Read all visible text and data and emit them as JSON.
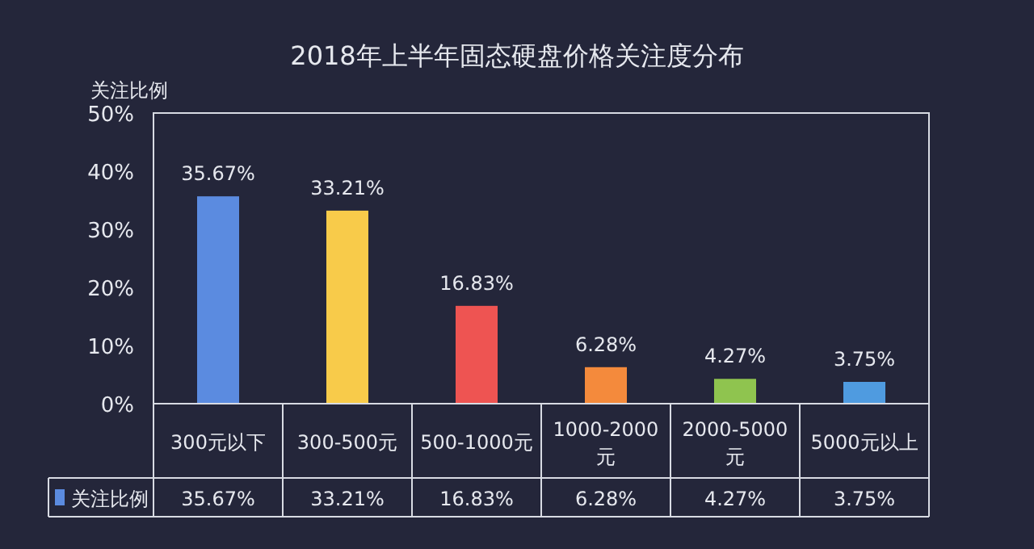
{
  "chart_data": {
    "type": "bar",
    "title": "2018年上半年固态硬盘价格关注度分布",
    "ylabel": "关注比例",
    "categories": [
      "300元以下",
      "300-500元",
      "500-1000元",
      "1000-2000元",
      "2000-5000元",
      "5000元以上"
    ],
    "series": [
      {
        "name": "关注比例",
        "color": "#5b8be0",
        "colors": [
          "#5b8be0",
          "#f8cb4a",
          "#ee5452",
          "#f48a3c",
          "#8fc44f",
          "#4f9be0"
        ],
        "values": [
          35.67,
          33.21,
          16.83,
          6.28,
          4.27,
          3.75
        ],
        "value_labels": [
          "35.67%",
          "33.21%",
          "16.83%",
          "6.28%",
          "4.27%",
          "3.75%"
        ]
      }
    ],
    "ylim": [
      0,
      50
    ],
    "yticks": [
      {
        "value": 0,
        "label": "0%"
      },
      {
        "value": 10,
        "label": "10%"
      },
      {
        "value": 20,
        "label": "20%"
      },
      {
        "value": 30,
        "label": "30%"
      },
      {
        "value": 40,
        "label": "40%"
      },
      {
        "value": 50,
        "label": "50%"
      }
    ],
    "grid": false,
    "legend": "bottom"
  }
}
